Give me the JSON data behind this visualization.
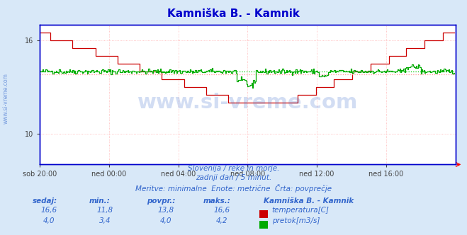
{
  "title": "Kamniška B. - Kamnik",
  "title_color": "#0000cc",
  "bg_color": "#d8e8f8",
  "plot_bg_color": "#ffffff",
  "x_labels": [
    "sob 20:00",
    "ned 00:00",
    "ned 04:00",
    "ned 08:00",
    "ned 12:00",
    "ned 16:00"
  ],
  "x_ticks": [
    0,
    72,
    144,
    216,
    288,
    360
  ],
  "x_max": 432,
  "ylim_temp": [
    8.0,
    17.0
  ],
  "ylim_flow": [
    0,
    6
  ],
  "temp_avg": 13.8,
  "temp_color": "#cc0000",
  "temp_avg_color": "#ff9999",
  "flow_color": "#00aa00",
  "flow_avg_color": "#00cc00",
  "flow_avg": 4.0,
  "grid_color": "#ffaaaa",
  "watermark": "www.si-vreme.com",
  "watermark_color": "#3366cc",
  "watermark_alpha": 0.22,
  "sub_text1": "Slovenija / reke in morje.",
  "sub_text2": "zadnji dan / 5 minut.",
  "sub_text3": "Meritve: minimalne  Enote: metrične  Črta: povprečje",
  "sub_color": "#3366cc",
  "table_headers": [
    "sedaj:",
    "min.:",
    "povpr.:",
    "maks.:"
  ],
  "table_row1": [
    "16,6",
    "11,8",
    "13,8",
    "16,6"
  ],
  "table_row2": [
    "4,0",
    "3,4",
    "4,0",
    "4,2"
  ],
  "legend_label1": "temperatura[C]",
  "legend_label2": "pretok[m3/s]",
  "legend_title": "Kamniška B. - Kamnik",
  "tick_color": "#444444",
  "border_color": "#0000cc"
}
